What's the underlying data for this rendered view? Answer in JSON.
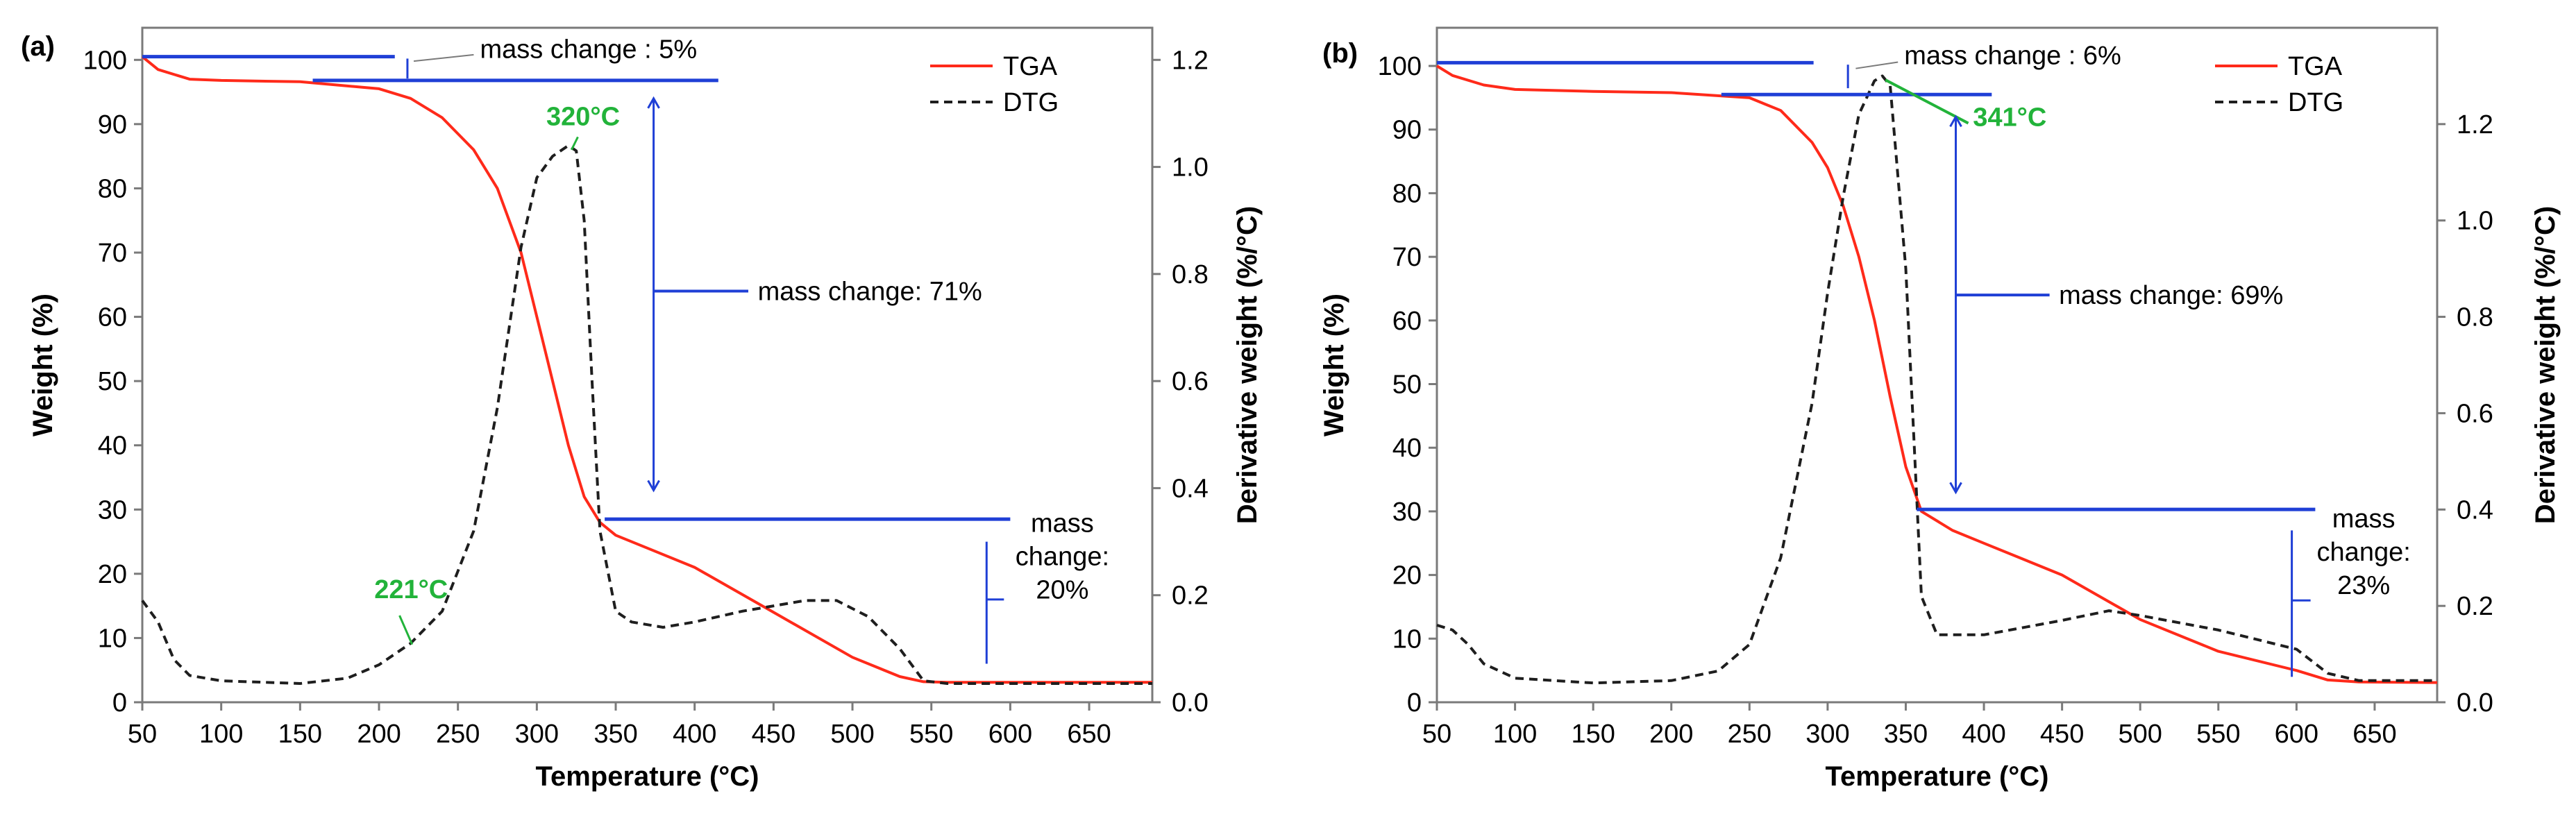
{
  "chart_data": [
    {
      "type": "line",
      "panel_label": "(a)",
      "xlabel": "Temperature (°C)",
      "ylabel": "Weight (%)",
      "y2label": "Derivative weight (%/°C)",
      "xlim": [
        50,
        690
      ],
      "ylim": [
        0,
        105
      ],
      "y2lim": [
        0,
        1.26
      ],
      "xticks": [
        50,
        100,
        150,
        200,
        250,
        300,
        350,
        400,
        450,
        500,
        550,
        600,
        650
      ],
      "yticks": [
        0,
        10,
        20,
        30,
        40,
        50,
        60,
        70,
        80,
        90,
        100
      ],
      "y2ticks": [
        0.0,
        0.2,
        0.4,
        0.6,
        0.8,
        1.0,
        1.2
      ],
      "legend": {
        "position": "top-right",
        "entries": [
          "TGA",
          "DTG"
        ]
      },
      "series": [
        {
          "name": "TGA",
          "axis": "left",
          "color": "#ff2a1a",
          "style": "solid",
          "x": [
            50,
            60,
            80,
            100,
            150,
            200,
            220,
            240,
            260,
            275,
            290,
            300,
            310,
            320,
            330,
            340,
            350,
            370,
            400,
            450,
            500,
            530,
            545,
            560,
            600,
            650,
            690
          ],
          "y": [
            100.5,
            98.5,
            97,
            96.8,
            96.6,
            95.5,
            94,
            91,
            86,
            80,
            70,
            60,
            50,
            40,
            32,
            28,
            26,
            24,
            21,
            14,
            7,
            4,
            3.2,
            3.1,
            3.1,
            3.1,
            3.1
          ]
        },
        {
          "name": "DTG",
          "axis": "right",
          "color": "#1e1e1e",
          "style": "dashed",
          "x": [
            50,
            60,
            70,
            80,
            100,
            150,
            180,
            200,
            220,
            240,
            260,
            275,
            290,
            300,
            310,
            320,
            325,
            330,
            335,
            340,
            350,
            360,
            380,
            400,
            430,
            470,
            490,
            510,
            530,
            545,
            560,
            600,
            690
          ],
          "y": [
            0.19,
            0.15,
            0.08,
            0.05,
            0.04,
            0.035,
            0.045,
            0.07,
            0.11,
            0.17,
            0.32,
            0.55,
            0.85,
            0.98,
            1.02,
            1.04,
            1.03,
            0.9,
            0.6,
            0.32,
            0.17,
            0.15,
            0.14,
            0.15,
            0.17,
            0.19,
            0.19,
            0.16,
            0.1,
            0.04,
            0.035,
            0.035,
            0.035
          ]
        }
      ],
      "annotations": {
        "mass_change_1": "mass change : 5%",
        "mass_change_2": "mass change: 71%",
        "mass_change_3_lines": [
          "mass",
          "change:",
          "20%"
        ],
        "peak_temp": "320°C",
        "onset_temp": "221°C"
      }
    },
    {
      "type": "line",
      "panel_label": "(b)",
      "xlabel": "Temperature (°C)",
      "ylabel": "Weight (%)",
      "y2label": "Derivative weight (%/°C)",
      "xlim": [
        50,
        690
      ],
      "ylim": [
        0,
        106
      ],
      "y2lim": [
        0,
        1.4
      ],
      "xticks": [
        50,
        100,
        150,
        200,
        250,
        300,
        350,
        400,
        450,
        500,
        550,
        600,
        650
      ],
      "yticks": [
        0,
        10,
        20,
        30,
        40,
        50,
        60,
        70,
        80,
        90,
        100
      ],
      "y2ticks": [
        0.0,
        0.2,
        0.4,
        0.6,
        0.8,
        1.0,
        1.2
      ],
      "legend": {
        "position": "top-right",
        "entries": [
          "TGA",
          "DTG"
        ]
      },
      "series": [
        {
          "name": "TGA",
          "axis": "left",
          "color": "#ff2a1a",
          "style": "solid",
          "x": [
            50,
            60,
            80,
            100,
            150,
            200,
            250,
            270,
            290,
            300,
            310,
            320,
            330,
            340,
            350,
            360,
            380,
            400,
            450,
            500,
            550,
            600,
            620,
            640,
            690
          ],
          "y": [
            100,
            98.5,
            97,
            96.3,
            96,
            95.8,
            95,
            93,
            88,
            84,
            78,
            70,
            60,
            48,
            37,
            30,
            27,
            25,
            20,
            13,
            8,
            5,
            3.5,
            3.2,
            3.1
          ]
        },
        {
          "name": "DTG",
          "axis": "right",
          "color": "#1e1e1e",
          "style": "dashed",
          "x": [
            50,
            60,
            70,
            80,
            100,
            150,
            200,
            230,
            250,
            270,
            290,
            300,
            310,
            320,
            330,
            335,
            340,
            350,
            360,
            370,
            400,
            450,
            480,
            500,
            550,
            600,
            620,
            640,
            690
          ],
          "y": [
            0.16,
            0.15,
            0.12,
            0.08,
            0.05,
            0.04,
            0.045,
            0.065,
            0.12,
            0.3,
            0.62,
            0.85,
            1.05,
            1.22,
            1.29,
            1.3,
            1.28,
            0.9,
            0.22,
            0.14,
            0.14,
            0.17,
            0.19,
            0.18,
            0.15,
            0.11,
            0.06,
            0.045,
            0.045
          ]
        }
      ],
      "annotations": {
        "mass_change_1": "mass change : 6%",
        "mass_change_2": "mass change: 69%",
        "mass_change_3_lines": [
          "mass",
          "change:",
          "23%"
        ],
        "peak_temp": "341°C"
      }
    }
  ]
}
